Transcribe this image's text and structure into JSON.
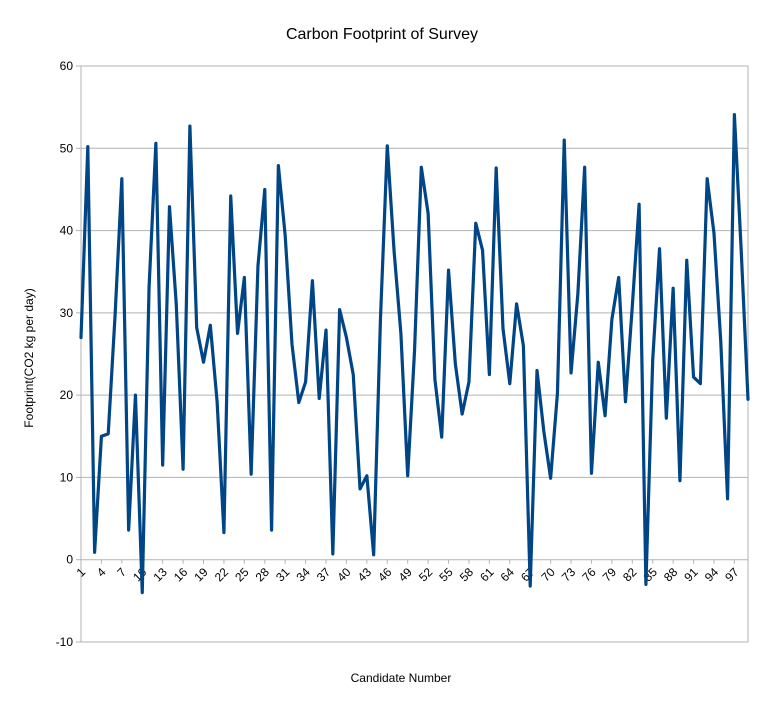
{
  "chart_data": {
    "type": "line",
    "title": "Carbon Footprint of Survey",
    "xlabel": "Candidate Number",
    "ylabel": "Footprint(CO2 kg per day)",
    "ylim": [
      -10,
      60
    ],
    "yticks": [
      -10,
      0,
      10,
      20,
      30,
      40,
      50,
      60
    ],
    "grid": true,
    "legend": "none",
    "series_color": "#004586",
    "x": [
      1,
      2,
      3,
      4,
      5,
      6,
      7,
      8,
      9,
      10,
      11,
      12,
      13,
      14,
      15,
      16,
      17,
      18,
      19,
      20,
      21,
      22,
      23,
      24,
      25,
      26,
      27,
      28,
      29,
      30,
      31,
      32,
      33,
      34,
      35,
      36,
      37,
      38,
      39,
      40,
      41,
      42,
      43,
      44,
      45,
      46,
      47,
      48,
      49,
      50,
      51,
      52,
      53,
      54,
      55,
      56,
      57,
      58,
      59,
      60,
      61,
      62,
      63,
      64,
      65,
      66,
      67,
      68,
      69,
      70,
      71,
      72,
      73,
      74,
      75,
      76,
      77,
      78,
      79,
      80,
      81,
      82,
      83,
      84,
      85,
      86,
      87,
      88,
      89,
      90,
      91,
      92,
      93,
      94,
      95,
      96,
      97,
      98,
      99
    ],
    "x_tick_labels": [
      "1",
      "4",
      "7",
      "10",
      "13",
      "16",
      "19",
      "22",
      "25",
      "28",
      "31",
      "34",
      "37",
      "40",
      "43",
      "46",
      "49",
      "52",
      "55",
      "58",
      "61",
      "64",
      "67",
      "70",
      "73",
      "76",
      "79",
      "82",
      "85",
      "88",
      "91",
      "94",
      "97"
    ],
    "series": [
      {
        "values": [
          27,
          50.2,
          0.9,
          15,
          15.3,
          29.6,
          46.3,
          3.6,
          20,
          -4,
          33.1,
          50.6,
          11.5,
          42.9,
          31,
          11,
          52.7,
          28.2,
          24,
          28.5,
          19.2,
          3.3,
          44.2,
          27.5,
          34.3,
          10.4,
          35.7,
          45,
          3.6,
          47.9,
          39.4,
          26.2,
          19.1,
          21.6,
          33.9,
          19.6,
          27.9,
          0.7,
          30.4,
          27,
          22.5,
          8.6,
          10.2,
          0.6,
          29.3,
          50.3,
          37.5,
          27.5,
          10.2,
          25.3,
          47.7,
          42.1,
          21.9,
          14.9,
          35.2,
          23.8,
          17.7,
          21.6,
          40.9,
          37.6,
          22.5,
          47.6,
          28.1,
          21.4,
          31.1,
          26,
          -3.2,
          23,
          15.6,
          9.9,
          20.2,
          51,
          22.7,
          32.3,
          47.7,
          10.5,
          24,
          17.5,
          29.2,
          34.3,
          19.2,
          30.8,
          43.2,
          -3,
          24.3,
          37.8,
          17.2,
          33,
          9.6,
          36.4,
          22.2,
          21.4,
          46.3,
          39.7,
          26.5,
          7.4,
          54.1,
          37.6,
          19.5
        ]
      }
    ]
  }
}
